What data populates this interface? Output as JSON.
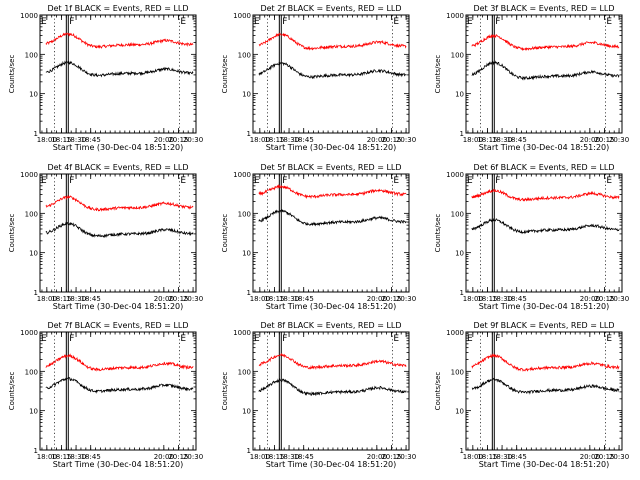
{
  "window": {
    "background": "#ffffff"
  },
  "chart_data": [
    {
      "type": "line",
      "title": "Det 1f BLACK = Events, RED = LLD",
      "ylabel": "Counts/sec",
      "xlabel": "Start Time (30-Dec-04 18:51:20)",
      "xlim": [
        "17:53",
        "20:33"
      ],
      "x_ticks": [
        "18:00",
        "18:15",
        "18:30",
        "18:45",
        "20:00",
        "20:15",
        "20:30"
      ],
      "y_scale": "log",
      "ylim": [
        1,
        1000
      ],
      "y_ticks": [
        1,
        10,
        100,
        1000
      ],
      "y_tick_labels": [
        "1",
        "10",
        "100",
        "1000"
      ],
      "markers": [
        {
          "label": "E",
          "time": "17:53"
        },
        {
          "label": "F",
          "time": "18:22"
        },
        {
          "label": "E",
          "time": "20:16"
        }
      ],
      "series": [
        {
          "color": "#ff0000",
          "base": 175,
          "peak": 330
        },
        {
          "color": "#000000",
          "base": 33,
          "peak": 62
        }
      ]
    },
    {
      "type": "line",
      "title": "Det 2f BLACK = Events, RED = LLD",
      "ylabel": "Counts/sec",
      "xlabel": "Start Time (30-Dec-04 18:51:20)",
      "xlim": [
        "17:53",
        "20:33"
      ],
      "x_ticks": [
        "18:00",
        "18:15",
        "18:30",
        "18:45",
        "20:00",
        "20:15",
        "20:30"
      ],
      "y_scale": "log",
      "ylim": [
        1,
        1000
      ],
      "y_ticks": [
        1,
        10,
        100,
        1000
      ],
      "y_tick_labels": [
        "1",
        "10",
        "100",
        "1000"
      ],
      "markers": [
        {
          "label": "E",
          "time": "17:53"
        },
        {
          "label": "F",
          "time": "18:22"
        },
        {
          "label": "E",
          "time": "20:16"
        }
      ],
      "series": [
        {
          "color": "#ff0000",
          "base": 160,
          "peak": 320
        },
        {
          "color": "#000000",
          "base": 30,
          "peak": 60
        }
      ]
    },
    {
      "type": "line",
      "title": "Det 3f BLACK = Events, RED = LLD",
      "ylabel": "Counts/sec",
      "xlabel": "Start Time (30-Dec-04 18:51:20)",
      "xlim": [
        "17:53",
        "20:33"
      ],
      "x_ticks": [
        "18:00",
        "18:15",
        "18:30",
        "18:45",
        "20:00",
        "20:15",
        "20:30"
      ],
      "y_scale": "log",
      "ylim": [
        1,
        1000
      ],
      "y_ticks": [
        1,
        10,
        100,
        1000
      ],
      "y_tick_labels": [
        "1",
        "10",
        "100",
        "1000"
      ],
      "markers": [
        {
          "label": "E",
          "time": "17:53"
        },
        {
          "label": "F",
          "time": "18:22"
        },
        {
          "label": "E",
          "time": "20:16"
        }
      ],
      "series": [
        {
          "color": "#ff0000",
          "base": 155,
          "peak": 300
        },
        {
          "color": "#000000",
          "base": 28,
          "peak": 62
        }
      ]
    },
    {
      "type": "line",
      "title": "Det 4f BLACK = Events, RED = LLD",
      "ylabel": "Counts/sec",
      "xlabel": "Start Time (30-Dec-04 18:51:20)",
      "xlim": [
        "17:53",
        "20:33"
      ],
      "x_ticks": [
        "18:00",
        "18:15",
        "18:30",
        "18:45",
        "20:00",
        "20:15",
        "20:30"
      ],
      "y_scale": "log",
      "ylim": [
        1,
        1000
      ],
      "y_ticks": [
        1,
        10,
        100,
        1000
      ],
      "y_tick_labels": [
        "1",
        "10",
        "100",
        "1000"
      ],
      "markers": [
        {
          "label": "E",
          "time": "17:53"
        },
        {
          "label": "F",
          "time": "18:22"
        },
        {
          "label": "E",
          "time": "20:16"
        }
      ],
      "series": [
        {
          "color": "#ff0000",
          "base": 140,
          "peak": 260
        },
        {
          "color": "#000000",
          "base": 30,
          "peak": 55
        }
      ]
    },
    {
      "type": "line",
      "title": "Det 5f BLACK = Events, RED = LLD",
      "ylabel": "Counts/sec",
      "xlabel": "Start Time (30-Dec-04 18:51:20)",
      "xlim": [
        "17:53",
        "20:33"
      ],
      "x_ticks": [
        "18:00",
        "18:15",
        "18:30",
        "18:45",
        "20:00",
        "20:15",
        "20:30"
      ],
      "y_scale": "log",
      "ylim": [
        1,
        1000
      ],
      "y_ticks": [
        1,
        10,
        100,
        1000
      ],
      "y_tick_labels": [
        "1",
        "10",
        "100",
        "1000"
      ],
      "markers": [
        {
          "label": "E",
          "time": "17:53"
        },
        {
          "label": "F",
          "time": "18:22"
        },
        {
          "label": "E",
          "time": "20:16"
        }
      ],
      "series": [
        {
          "color": "#ff0000",
          "base": 300,
          "peak": 480
        },
        {
          "color": "#000000",
          "base": 60,
          "peak": 115
        }
      ]
    },
    {
      "type": "line",
      "title": "Det 6f BLACK = Events, RED = LLD",
      "ylabel": "Counts/sec",
      "xlabel": "Start Time (30-Dec-04 18:51:20)",
      "xlim": [
        "17:53",
        "20:33"
      ],
      "x_ticks": [
        "18:00",
        "18:15",
        "18:30",
        "18:45",
        "20:00",
        "20:15",
        "20:30"
      ],
      "y_scale": "log",
      "ylim": [
        1,
        1000
      ],
      "y_ticks": [
        1,
        10,
        100,
        1000
      ],
      "y_tick_labels": [
        "1",
        "10",
        "100",
        "1000"
      ],
      "markers": [
        {
          "label": "E",
          "time": "17:53"
        },
        {
          "label": "F",
          "time": "18:22"
        },
        {
          "label": "E",
          "time": "20:16"
        }
      ],
      "series": [
        {
          "color": "#ff0000",
          "base": 250,
          "peak": 380
        },
        {
          "color": "#000000",
          "base": 38,
          "peak": 68
        }
      ]
    },
    {
      "type": "line",
      "title": "Det 7f BLACK = Events, RED = LLD",
      "ylabel": "Counts/sec",
      "xlabel": "Start Time (30-Dec-04 18:51:20)",
      "xlim": [
        "17:53",
        "20:33"
      ],
      "x_ticks": [
        "18:00",
        "18:15",
        "18:30",
        "18:45",
        "20:00",
        "20:15",
        "20:30"
      ],
      "y_scale": "log",
      "ylim": [
        1,
        1000
      ],
      "y_ticks": [
        1,
        10,
        100,
        1000
      ],
      "y_tick_labels": [
        "1",
        "10",
        "100",
        "1000"
      ],
      "markers": [
        {
          "label": "E",
          "time": "17:53"
        },
        {
          "label": "F",
          "time": "18:22"
        },
        {
          "label": "E",
          "time": "20:16"
        }
      ],
      "series": [
        {
          "color": "#ff0000",
          "base": 125,
          "peak": 250
        },
        {
          "color": "#000000",
          "base": 35,
          "peak": 65
        }
      ]
    },
    {
      "type": "line",
      "title": "Det 8f BLACK = Events, RED = LLD",
      "ylabel": "Counts/sec",
      "xlabel": "Start Time (30-Dec-04 18:51:20)",
      "xlim": [
        "17:53",
        "20:33"
      ],
      "x_ticks": [
        "18:00",
        "18:15",
        "18:30",
        "18:45",
        "20:00",
        "20:15",
        "20:30"
      ],
      "y_scale": "log",
      "ylim": [
        1,
        1000
      ],
      "y_ticks": [
        1,
        10,
        100,
        1000
      ],
      "y_tick_labels": [
        "1",
        "10",
        "100",
        "1000"
      ],
      "markers": [
        {
          "label": "E",
          "time": "17:53"
        },
        {
          "label": "F",
          "time": "18:22"
        },
        {
          "label": "E",
          "time": "20:16"
        }
      ],
      "series": [
        {
          "color": "#ff0000",
          "base": 140,
          "peak": 260
        },
        {
          "color": "#000000",
          "base": 30,
          "peak": 60
        }
      ]
    },
    {
      "type": "line",
      "title": "Det 9f BLACK = Events, RED = LLD",
      "ylabel": "Counts/sec",
      "xlabel": "Start Time (30-Dec-04 18:51:20)",
      "xlim": [
        "17:53",
        "20:33"
      ],
      "x_ticks": [
        "18:00",
        "18:15",
        "18:30",
        "18:45",
        "20:00",
        "20:15",
        "20:30"
      ],
      "y_scale": "log",
      "ylim": [
        1,
        1000
      ],
      "y_ticks": [
        1,
        10,
        100,
        1000
      ],
      "y_tick_labels": [
        "1",
        "10",
        "100",
        "1000"
      ],
      "markers": [
        {
          "label": "E",
          "time": "17:53"
        },
        {
          "label": "F",
          "time": "18:22"
        },
        {
          "label": "E",
          "time": "20:16"
        }
      ],
      "series": [
        {
          "color": "#ff0000",
          "base": 125,
          "peak": 250
        },
        {
          "color": "#000000",
          "base": 33,
          "peak": 62
        }
      ]
    }
  ]
}
